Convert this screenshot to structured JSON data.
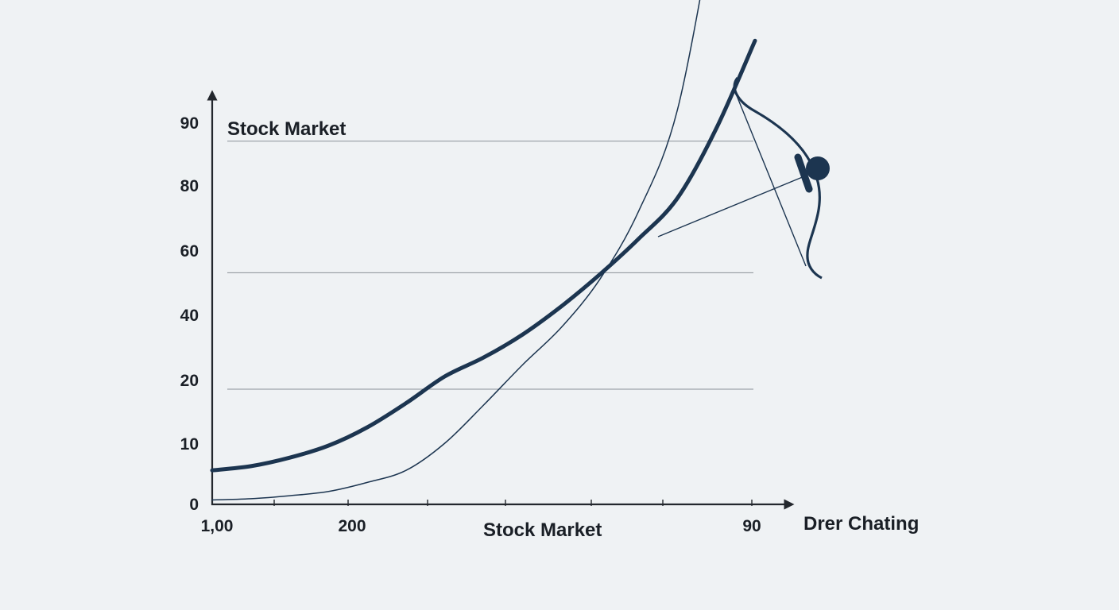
{
  "chart_data": {
    "type": "line",
    "ylabel": "Stock Market",
    "xlabel": "Stock Market",
    "x_axis_extra_label": "Drer Chating",
    "x_tick_labels": [
      "1,00",
      "200",
      "90"
    ],
    "y_tick_labels": [
      "0",
      "10",
      "20",
      "40",
      "60",
      "80",
      "90"
    ],
    "y_tick_values": [
      0,
      10,
      20,
      40,
      60,
      80,
      90
    ],
    "gridlines_at": [
      18.5,
      53,
      87
    ],
    "grid": true,
    "series": [
      {
        "style": "thick",
        "color": "#1c3550",
        "x": [
          0,
          50,
          100,
          150,
          200,
          250,
          300,
          350,
          400,
          450,
          500,
          550,
          600,
          650,
          700
        ],
        "y": [
          5.5,
          6.2,
          7.6,
          9.6,
          12.5,
          16.3,
          21,
          26.8,
          33.8,
          42.5,
          52.5,
          63.5,
          76,
          89,
          103
        ]
      },
      {
        "style": "thin",
        "color": "#1c3550",
        "x": [
          0,
          50,
          100,
          150,
          200,
          250,
          300,
          350,
          400,
          450,
          500,
          550,
          600,
          650
        ],
        "y": [
          0.6,
          0.8,
          1.3,
          2,
          3.5,
          5.5,
          10,
          16,
          24.5,
          36,
          51,
          72,
          92,
          124
        ]
      }
    ],
    "annotation": {
      "shape": "bow",
      "color": "#1c3550"
    }
  }
}
